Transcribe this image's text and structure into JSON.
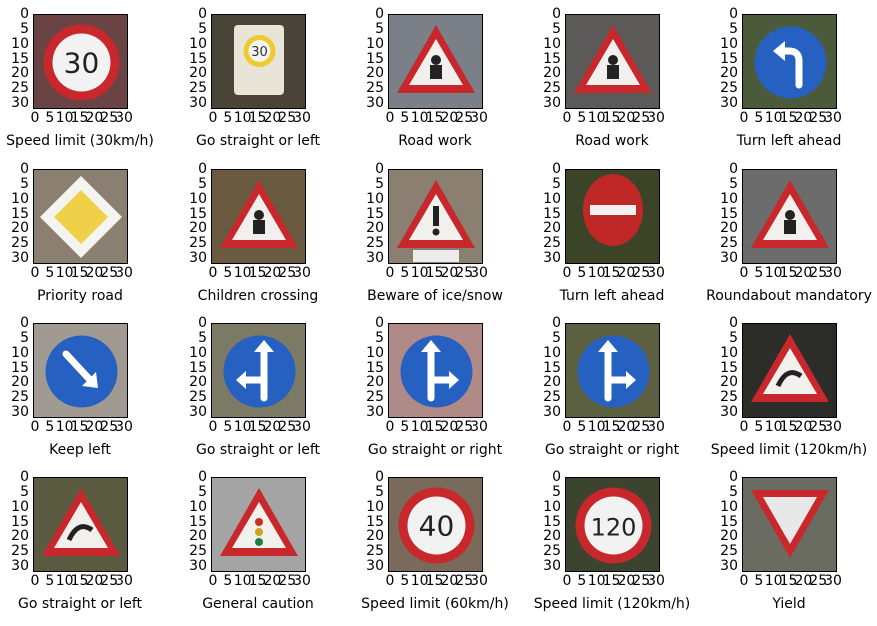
{
  "chart_data": {
    "type": "image_grid",
    "axis": {
      "y_ticks": [
        "0",
        "5",
        "10",
        "15",
        "20",
        "25",
        "30"
      ],
      "x_ticks": [
        "0",
        "5",
        "10",
        "15",
        "20",
        "25",
        "30"
      ],
      "xlim": [
        0,
        32
      ],
      "ylim": [
        32,
        0
      ]
    },
    "images": [
      {
        "caption": "Speed limit (30km/h)",
        "sign": "speed",
        "text": "30",
        "bg": "#6a4444"
      },
      {
        "caption": "Go straight or left",
        "sign": "square-speed",
        "text": "30",
        "bg": "#4a4438"
      },
      {
        "caption": "Road work",
        "sign": "triangle-work",
        "text": "",
        "bg": "#7a7f88"
      },
      {
        "caption": "Road work",
        "sign": "triangle-work",
        "text": "",
        "bg": "#5c5a58"
      },
      {
        "caption": "Turn left ahead",
        "sign": "blue-turn-left",
        "text": "",
        "bg": "#4a5a3a"
      },
      {
        "caption": "Priority road",
        "sign": "priority",
        "text": "",
        "bg": "#8a7f70"
      },
      {
        "caption": "Children crossing",
        "sign": "triangle-children",
        "text": "",
        "bg": "#6a5a40"
      },
      {
        "caption": "Beware of ice/snow",
        "sign": "triangle-caution",
        "text": "",
        "bg": "#8a7f70"
      },
      {
        "caption": "Turn left ahead",
        "sign": "no-entry",
        "text": "",
        "bg": "#3c4428"
      },
      {
        "caption": "Roundabout mandatory",
        "sign": "triangle-children",
        "text": "",
        "bg": "#6c6c6c"
      },
      {
        "caption": "Keep left",
        "sign": "blue-arrow-diag",
        "text": "",
        "bg": "#a09a92"
      },
      {
        "caption": "Go straight or left",
        "sign": "blue-straight-left",
        "text": "",
        "bg": "#7c7a64"
      },
      {
        "caption": "Go straight or right",
        "sign": "blue-straight-right",
        "text": "",
        "bg": "#b08a86"
      },
      {
        "caption": "Go straight or right",
        "sign": "blue-straight-right",
        "text": "",
        "bg": "#5c6040"
      },
      {
        "caption": "Speed limit (120km/h)",
        "sign": "triangle-curve",
        "text": "",
        "bg": "#2c2c28"
      },
      {
        "caption": "Go straight or left",
        "sign": "triangle-curve",
        "text": "",
        "bg": "#5a5a40"
      },
      {
        "caption": "General caution",
        "sign": "triangle-lights",
        "text": "",
        "bg": "#a4a4a4"
      },
      {
        "caption": "Speed limit (60km/h)",
        "sign": "speed",
        "text": "40",
        "bg": "#7a6a5c"
      },
      {
        "caption": "Speed limit (120km/h)",
        "sign": "speed",
        "text": "120",
        "bg": "#3c4430"
      },
      {
        "caption": "Yield",
        "sign": "yield",
        "text": "",
        "bg": "#6a6c62"
      }
    ]
  }
}
